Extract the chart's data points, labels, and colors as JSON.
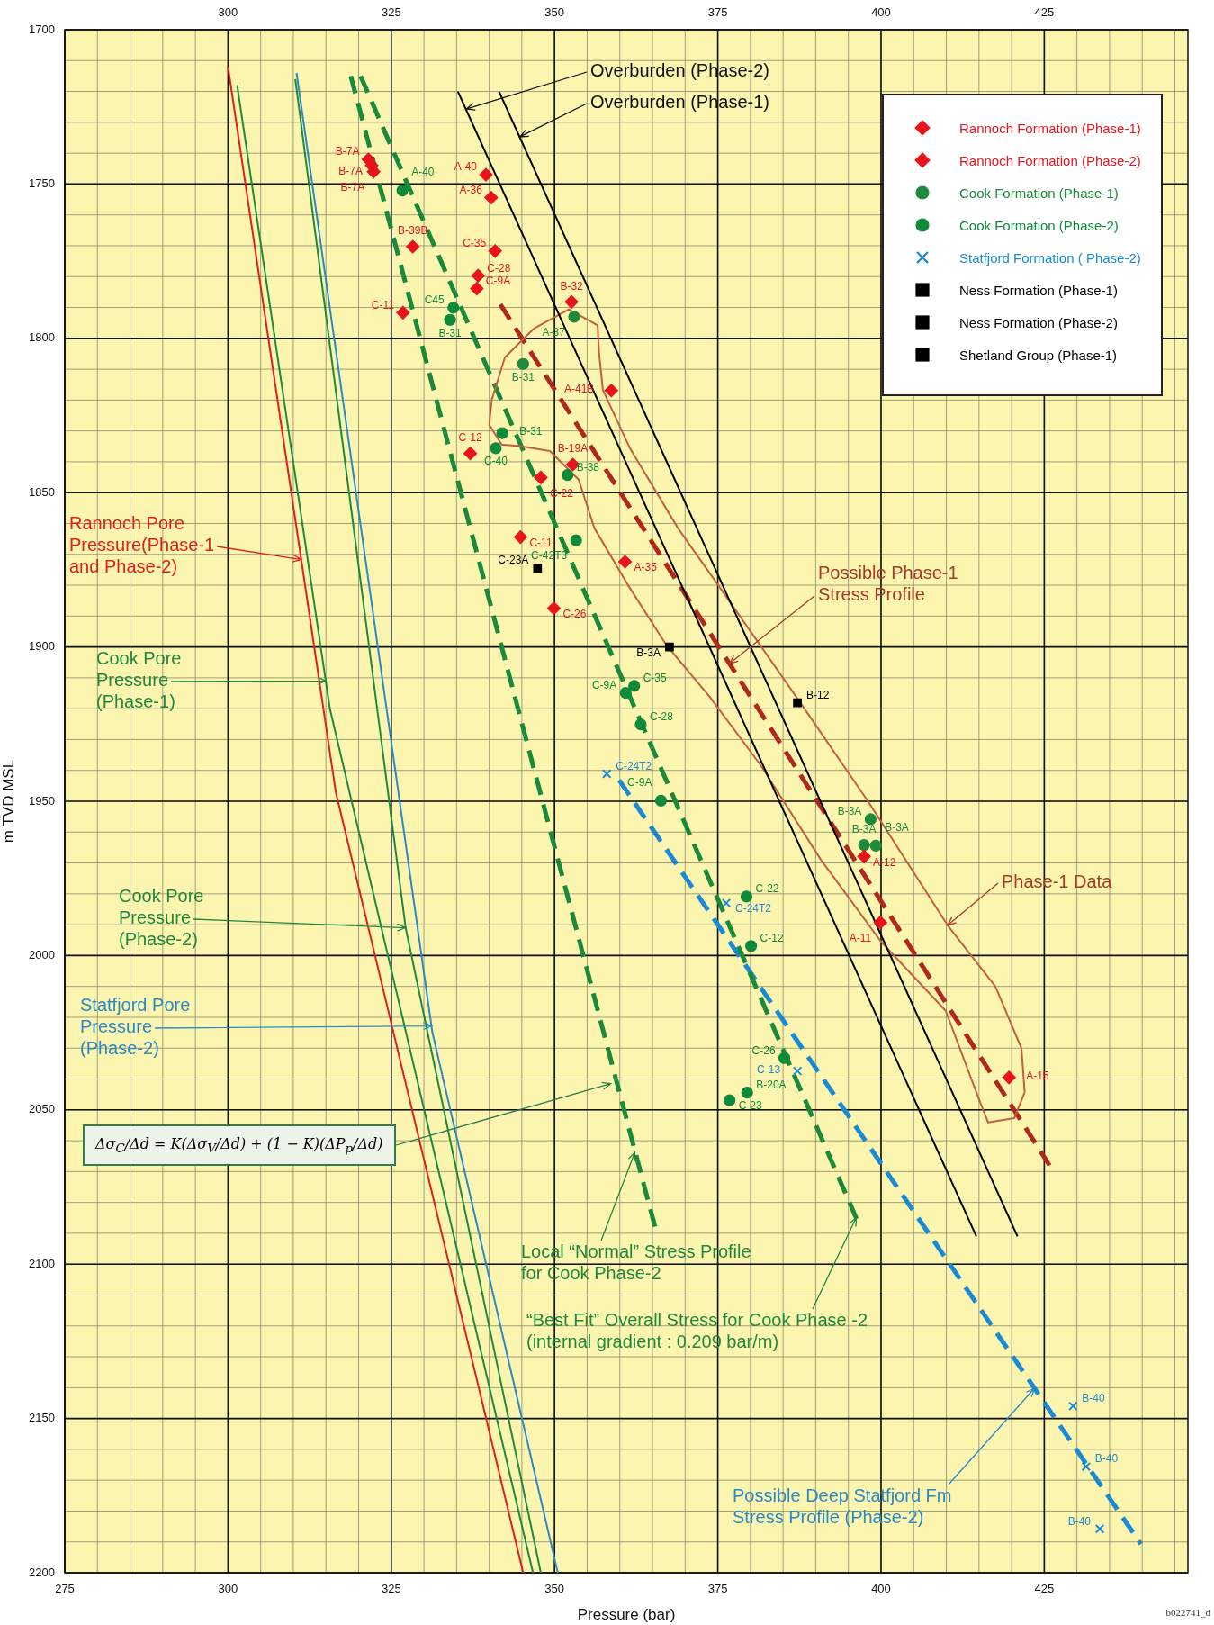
{
  "chart_data": {
    "type": "scatter",
    "xlabel": "Pressure (bar)",
    "ylabel": "m TVD MSL",
    "xlim": [
      275,
      447
    ],
    "xticks": [
      275,
      300,
      325,
      350,
      375,
      400,
      425
    ],
    "x2lim": [
      275,
      447
    ],
    "x2ticks": [
      300,
      325,
      350,
      375,
      400,
      425
    ],
    "ylim": [
      2200,
      1700
    ],
    "yticks": [
      1700,
      1750,
      1800,
      1850,
      1900,
      1950,
      2000,
      2050,
      2100,
      2150,
      2200
    ],
    "grid": true,
    "legend": "top right",
    "series": [
      {
        "type": "line",
        "color": "#e0201c",
        "line_style": "solid",
        "x": [
          300,
          316.5,
          345.2
        ],
        "values": [
          1712,
          1947,
          2200
        ]
      },
      {
        "type": "line",
        "color": "#1f8a3c",
        "line_style": "solid",
        "x": [
          301.4,
          315.6,
          346.7
        ],
        "values": [
          1718,
          1920,
          2200
        ]
      },
      {
        "type": "line",
        "color": "#1f8a3c",
        "line_style": "solid",
        "x": [
          310.3,
          327.2,
          347.9
        ],
        "values": [
          1716,
          1991,
          2200
        ]
      },
      {
        "type": "line",
        "color": "#2a8ac8",
        "line_style": "solid",
        "x": [
          310.5,
          331.3,
          350.5
        ],
        "values": [
          1714,
          2025,
          2200
        ]
      },
      {
        "type": "line",
        "color": "#000000",
        "line_style": "solid",
        "x": [
          335.2,
          414.6
        ],
        "values": [
          1720,
          2091
        ]
      },
      {
        "type": "line",
        "color": "#000000",
        "line_style": "solid",
        "x": [
          341.5,
          420.9
        ],
        "values": [
          1720,
          2091
        ]
      },
      {
        "type": "line",
        "color": "#c0603e",
        "line_style": "solid",
        "x": [
          340,
          340.4,
          342.4,
          346.8,
          352.2,
          356.6,
          356.8,
          357.4,
          361.5,
          368.9,
          375,
          387.2,
          398,
          410.2,
          417.5,
          421.5,
          422
        ],
        "values": [
          1828,
          1819.8,
          1806.2,
          1796.9,
          1790.6,
          1795.8,
          1804.2,
          1816.7,
          1835.4,
          1861.5,
          1879.8,
          1916.7,
          1950,
          1990.2,
          2010,
          2030,
          2044.3
        ]
      },
      {
        "type": "line",
        "color": "#c0603e",
        "line_style": "solid",
        "x": [
          422,
          420.4,
          416.4,
          415.1,
          409.9,
          400,
          390.8,
          381.6,
          373.7,
          367.1,
          361.2,
          356.1,
          353.7,
          349.3,
          344.9,
          341.9,
          340
        ],
        "values": [
          2044.3,
          2052.7,
          2054.1,
          2047.1,
          2017.9,
          1995.5,
          1969,
          1938.4,
          1916,
          1899.3,
          1879.8,
          1861.5,
          1845.8,
          1836.5,
          1835,
          1834.4,
          1828
        ]
      },
      {
        "type": "line",
        "color": "#1a8a3a",
        "line_style": "dashed",
        "x": [
          318.8,
          365.4
        ],
        "values": [
          1715,
          2088
        ]
      },
      {
        "type": "line",
        "color": "#1a8a3a",
        "line_style": "dashed",
        "x": [
          320.3,
          396.6
        ],
        "values": [
          1715,
          2087
        ]
      },
      {
        "type": "line",
        "color": "#b0281c",
        "line_style": "dashed",
        "x": [
          341.7,
          425.8
        ],
        "values": [
          1789,
          2068
        ]
      },
      {
        "type": "line",
        "color": "#1a8ad4",
        "line_style": "dashed",
        "x": [
          359.9,
          439.8
        ],
        "values": [
          1943.2,
          2190.7
        ]
      },
      {
        "name": "Rannoch Formation (Phase-1)",
        "color": "#e8141c",
        "marker": "diamond",
        "x": [
          352.8,
          360.8,
          397.4,
          399.9,
          419.6
        ],
        "values": [
          1840.9,
          1872.4,
          1967.9,
          1989.3,
          2039.5
        ],
        "value_labels": [
          "B-19A",
          "A-35",
          "A-12",
          "A-11",
          "A-15"
        ]
      },
      {
        "name": "Rannoch Formation (Phase-2)",
        "color": "#e8141c",
        "marker": "diamond",
        "x": [
          321.5,
          322,
          322.3,
          339.5,
          340.3,
          328.3,
          340.9,
          338.3,
          338.1,
          326.8,
          352.6,
          358.7,
          337.1,
          347.9,
          344.8,
          349.9
        ],
        "values": [
          1742,
          1744,
          1746,
          1747,
          1754.4,
          1770.3,
          1771.7,
          1779.7,
          1783.9,
          1791.7,
          1788.2,
          1816.9,
          1837.3,
          1845.1,
          1864.4,
          1887.5
        ],
        "value_labels": [
          "B-7A",
          "B-7A",
          "B-7A",
          "A-40",
          "A-36",
          "B-39B",
          "C-35",
          "C-28",
          "C-9A",
          "C-11",
          "B-32",
          "A-41B",
          "C-12",
          "C-22",
          "C-11",
          "C-26"
        ]
      },
      {
        "name": "Cook Formation (Phase-1)",
        "color": "#1f8a3c",
        "marker": "circle",
        "x": [
          353,
          345.2,
          398.4,
          397.4,
          399.2
        ],
        "values": [
          1793,
          1808.3,
          1955.8,
          1964.2,
          1964.4
        ],
        "value_labels": [
          "A-37",
          "B-31",
          "B-3A",
          "B-3A",
          "B-3A"
        ]
      },
      {
        "name": "Cook Formation (Phase-2)",
        "color": "#0f8a3a",
        "marker": "circle",
        "x": [
          326.7,
          334.5,
          334,
          342,
          341,
          352,
          353.3,
          362.2,
          360.9,
          363.2,
          366.3,
          379.4,
          380.1,
          385.2,
          379.5,
          376.8
        ],
        "values": [
          1752.1,
          1790.1,
          1794,
          1830.7,
          1835.6,
          1844.3,
          1865.4,
          1912.6,
          1914.9,
          1925.1,
          1949.8,
          1980.9,
          1996.9,
          2033.2,
          2044.4,
          2046.9
        ],
        "value_labels": [
          "A-40",
          "C45",
          "B-31",
          "B-31",
          "C-40",
          "B-38",
          "C-42T3",
          "C-35",
          "C-9A",
          "C-28",
          "C-9A",
          "C-22",
          "C-12",
          "C-26",
          "B-20A",
          "C-23"
        ]
      },
      {
        "name": "Statfjord Formation ( Phase-2)",
        "color": "#1a8ad4",
        "marker": "cross",
        "x": [
          358,
          376.3,
          387.2,
          429.4,
          431.4,
          433.5
        ],
        "values": [
          1941.1,
          1983,
          2037.4,
          2146,
          2165.6,
          2185.8
        ],
        "value_labels": [
          "C-24T2",
          "C-24T2",
          "C-13",
          "B-40",
          "B-40",
          "B-40"
        ]
      },
      {
        "name": "Ness Formation (Phase-1)",
        "color": "#000000",
        "marker": "square",
        "x": [
          367.6
        ],
        "values": [
          1900
        ],
        "value_labels": [
          "B-3A"
        ]
      },
      {
        "name": "Ness Formation (Phase-2)",
        "color": "#000000",
        "marker": "square",
        "x": [
          347.4
        ],
        "values": [
          1874.5
        ],
        "value_labels": [
          "C-23A"
        ]
      },
      {
        "name": "Shetland Group (Phase-1)",
        "color": "#000000",
        "marker": "square",
        "x": [
          387.2
        ],
        "values": [
          1918.1
        ],
        "value_labels": [
          "B-12"
        ]
      }
    ],
    "annotations": [
      {
        "text": "Overburden (Phase-2)",
        "x": 336.5,
        "y": 1725.7
      },
      {
        "text": "Overburden (Phase-1)",
        "x": 344.7,
        "y": 1734.7
      },
      {
        "text": "Rannoch Pore\nPressure(Phase-1\nand Phase-2)",
        "x": 311.2,
        "y": 1871.7
      },
      {
        "text": "Cook Pore\nPressure\n(Phase-1)",
        "x": 315,
        "y": 1911
      },
      {
        "text": "Cook Pore\nPressure\n(Phase-2)",
        "x": 327.2,
        "y": 1991
      },
      {
        "text": "Statfjord Pore\nPressure\n(Phase-2)",
        "x": 331.2,
        "y": 2022.8
      },
      {
        "text": "Δσ$_{C}$/Δd = K(Δσ$_{V}$/Δd) + (1 − K)(ΔP$_{p}$/Δd)",
        "x": 358.6,
        "y": 2041.5
      },
      {
        "text": "Possible Phase-1\nStress Profile",
        "x": 376.8,
        "y": 1905.4
      },
      {
        "text": "Phase-1 Data",
        "x": 410.2,
        "y": 1990.2
      },
      {
        "text": "Local “Normal” Stress Profile\nfor Cook Phase-2",
        "x": 362.3,
        "y": 2063.8
      },
      {
        "text": "“Best Fit” Overall Stress for Cook Phase -2\n(internal gradient : 0.209 bar/m)",
        "x": 396.2,
        "y": 2084.9
      },
      {
        "text": "Possible Deep Statfjord Fm\nStress Profile (Phase-2)",
        "x": 423.5,
        "y": 2140.2
      },
      "b022741_d"
    ]
  }
}
